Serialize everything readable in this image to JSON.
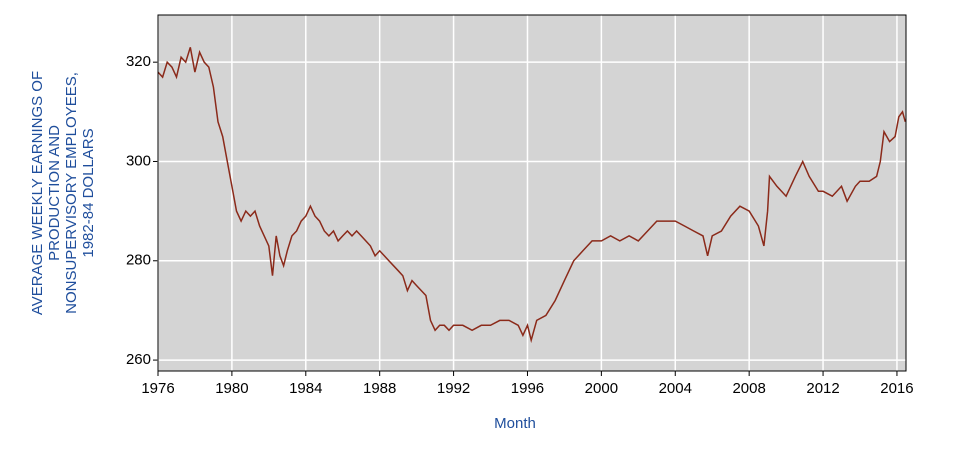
{
  "chart_data": {
    "type": "line",
    "ylabel": [
      "AVERAGE WEEKLY EARNINGS OF",
      "PRODUCTION AND",
      "NONSUPERVISORY EMPLOYEES,",
      "1982-84 DOLLARS"
    ],
    "xlabel": "Month",
    "x": [
      1976.0,
      1976.25,
      1976.5,
      1976.75,
      1977.0,
      1977.25,
      1977.5,
      1977.75,
      1978.0,
      1978.25,
      1978.5,
      1978.75,
      1979.0,
      1979.25,
      1979.5,
      1979.75,
      1980.0,
      1980.25,
      1980.5,
      1980.75,
      1981.0,
      1981.25,
      1981.5,
      1981.75,
      1982.0,
      1982.2,
      1982.4,
      1982.6,
      1982.8,
      1983.0,
      1983.25,
      1983.5,
      1983.75,
      1984.0,
      1984.25,
      1984.5,
      1984.75,
      1985.0,
      1985.25,
      1985.5,
      1985.75,
      1986.0,
      1986.25,
      1986.5,
      1986.75,
      1987.0,
      1987.25,
      1987.5,
      1987.75,
      1988.0,
      1988.25,
      1988.5,
      1988.75,
      1989.0,
      1989.25,
      1989.5,
      1989.75,
      1990.0,
      1990.25,
      1990.5,
      1990.75,
      1991.0,
      1991.25,
      1991.5,
      1991.75,
      1992.0,
      1992.5,
      1993.0,
      1993.5,
      1994.0,
      1994.5,
      1995.0,
      1995.5,
      1995.75,
      1996.0,
      1996.2,
      1996.5,
      1997.0,
      1997.5,
      1998.0,
      1998.5,
      1999.0,
      1999.5,
      2000.0,
      2000.5,
      2001.0,
      2001.5,
      2002.0,
      2002.5,
      2003.0,
      2003.5,
      2004.0,
      2004.5,
      2005.0,
      2005.5,
      2005.75,
      2006.0,
      2006.5,
      2007.0,
      2007.5,
      2008.0,
      2008.5,
      2008.8,
      2009.0,
      2009.1,
      2009.5,
      2010.0,
      2010.5,
      2010.9,
      2011.25,
      2011.75,
      2012.0,
      2012.5,
      2013.0,
      2013.3,
      2013.75,
      2014.0,
      2014.5,
      2014.9,
      2015.1,
      2015.3,
      2015.6,
      2015.9,
      2016.1,
      2016.3,
      2016.45
    ],
    "series": [
      {
        "name": "Average weekly earnings",
        "color": "#8b2a1a",
        "values": [
          318,
          317,
          320,
          319,
          317,
          321,
          320,
          323,
          318,
          322,
          320,
          319,
          315,
          308,
          305,
          300,
          295,
          290,
          288,
          290,
          289,
          290,
          287,
          285,
          283,
          277,
          285,
          281,
          279,
          282,
          285,
          286,
          288,
          289,
          291,
          289,
          288,
          286,
          285,
          286,
          284,
          285,
          286,
          285,
          286,
          285,
          284,
          283,
          281,
          282,
          281,
          280,
          279,
          278,
          277,
          274,
          276,
          275,
          274,
          273,
          268,
          266,
          267,
          267,
          266,
          267,
          267,
          266,
          267,
          267,
          268,
          268,
          267,
          265,
          267,
          264,
          268,
          269,
          272,
          276,
          280,
          282,
          284,
          284,
          285,
          284,
          285,
          284,
          286,
          288,
          288,
          288,
          287,
          286,
          285,
          281,
          285,
          286,
          289,
          291,
          290,
          287,
          283,
          290,
          297,
          295,
          293,
          297,
          300,
          297,
          294,
          294,
          293,
          295,
          292,
          295,
          296,
          296,
          297,
          300,
          306,
          304,
          305,
          309,
          310,
          308
        ]
      }
    ],
    "xlim": [
      1976,
      2016.49
    ],
    "ylim": [
      257.8,
      329.5
    ],
    "xticks": [
      1976,
      1980,
      1984,
      1988,
      1992,
      1996,
      2000,
      2004,
      2008,
      2012,
      2016
    ],
    "yticks": [
      260,
      280,
      300,
      320
    ],
    "grid": true
  }
}
